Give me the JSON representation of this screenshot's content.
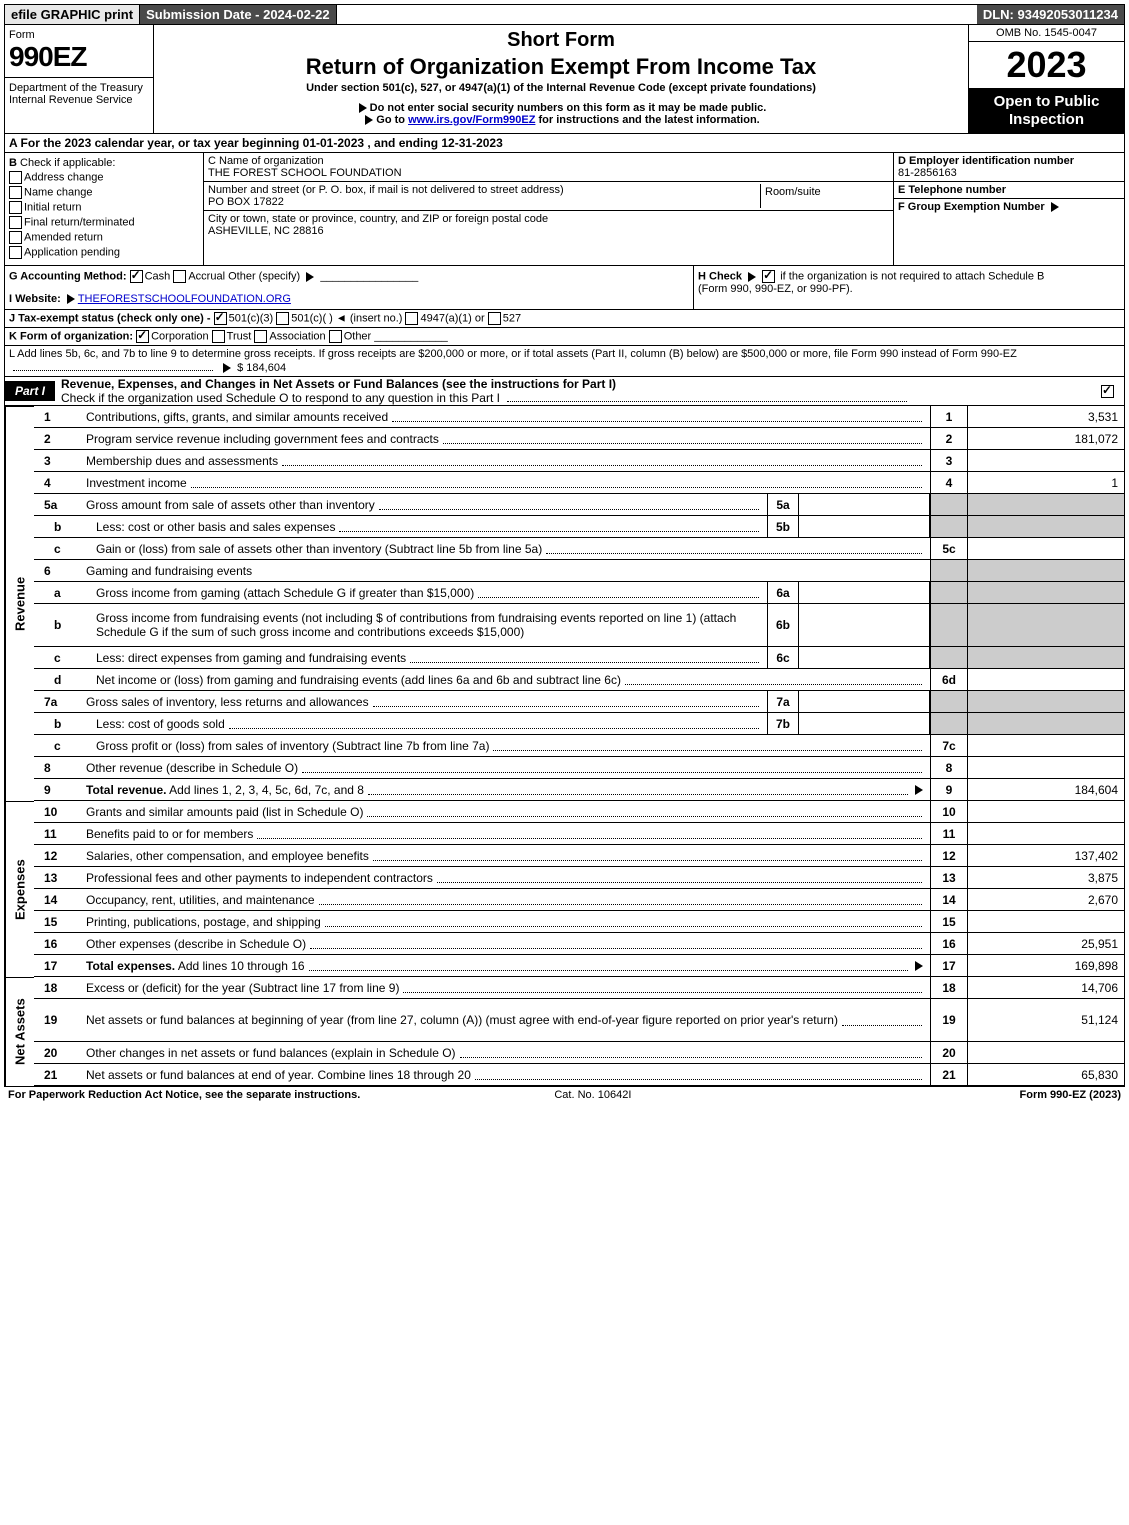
{
  "top": {
    "efile": "efile GRAPHIC print",
    "submission": "Submission Date - 2024-02-22",
    "dln": "DLN: 93492053011234"
  },
  "header": {
    "form_word": "Form",
    "form_no": "990EZ",
    "dept1": "Department of the Treasury",
    "dept2": "Internal Revenue Service",
    "short_form": "Short Form",
    "title": "Return of Organization Exempt From Income Tax",
    "subtitle": "Under section 501(c), 527, or 4947(a)(1) of the Internal Revenue Code (except private foundations)",
    "warn1": "Do not enter social security numbers on this form as it may be made public.",
    "warn2": "Go to www.irs.gov/Form990EZ for instructions and the latest information.",
    "omb": "OMB No. 1545-0047",
    "year": "2023",
    "open": "Open to Public Inspection"
  },
  "A": {
    "text": "A  For the 2023 calendar year, or tax year beginning 01-01-2023 , and ending 12-31-2023"
  },
  "B": {
    "label": "Check if applicable:",
    "items": [
      "Address change",
      "Name change",
      "Initial return",
      "Final return/terminated",
      "Amended return",
      "Application pending"
    ]
  },
  "C": {
    "name_lbl": "C Name of organization",
    "name": "THE FOREST SCHOOL FOUNDATION",
    "street_lbl": "Number and street (or P. O. box, if mail is not delivered to street address)",
    "street": "PO BOX 17822",
    "room_lbl": "Room/suite",
    "city_lbl": "City or town, state or province, country, and ZIP or foreign postal code",
    "city": "ASHEVILLE, NC  28816"
  },
  "D": {
    "lbl": "D Employer identification number",
    "val": "81-2856163"
  },
  "E": {
    "lbl": "E Telephone number"
  },
  "F": {
    "lbl": "F Group Exemption Number"
  },
  "G": {
    "lbl": "G Accounting Method:",
    "cash": "Cash",
    "accrual": "Accrual",
    "other": "Other (specify)"
  },
  "H": {
    "text1": "H  Check",
    "text2": "if the organization is not required to attach Schedule B",
    "text3": "(Form 990, 990-EZ, or 990-PF)."
  },
  "I": {
    "lbl": "I Website:",
    "val": "THEFORESTSCHOOLFOUNDATION.ORG"
  },
  "J": {
    "text": "J Tax-exempt status (check only one) -",
    "o1": "501(c)(3)",
    "o2": "501(c)(  )",
    "o2b": "(insert no.)",
    "o3": "4947(a)(1) or",
    "o4": "527"
  },
  "K": {
    "lbl": "K Form of organization:",
    "o1": "Corporation",
    "o2": "Trust",
    "o3": "Association",
    "o4": "Other"
  },
  "L": {
    "text": "L Add lines 5b, 6c, and 7b to line 9 to determine gross receipts. If gross receipts are $200,000 or more, or if total assets (Part II, column (B) below) are $500,000 or more, file Form 990 instead of Form 990-EZ",
    "amt": "$ 184,604"
  },
  "part1": {
    "tag": "Part I",
    "title": "Revenue, Expenses, and Changes in Net Assets or Fund Balances (see the instructions for Part I)",
    "check_line": "Check if the organization used Schedule O to respond to any question in this Part I"
  },
  "side": {
    "rev": "Revenue",
    "exp": "Expenses",
    "net": "Net Assets"
  },
  "lines": [
    {
      "n": "1",
      "d": "Contributions, gifts, grants, and similar amounts received",
      "rn": "1",
      "rv": "3,531"
    },
    {
      "n": "2",
      "d": "Program service revenue including government fees and contracts",
      "rn": "2",
      "rv": "181,072"
    },
    {
      "n": "3",
      "d": "Membership dues and assessments",
      "rn": "3",
      "rv": ""
    },
    {
      "n": "4",
      "d": "Investment income",
      "rn": "4",
      "rv": "1"
    },
    {
      "n": "5a",
      "d": "Gross amount from sale of assets other than inventory",
      "ib": "5a",
      "grey": true
    },
    {
      "n": "b",
      "sub": true,
      "d": "Less: cost or other basis and sales expenses",
      "ib": "5b",
      "grey": true
    },
    {
      "n": "c",
      "sub": true,
      "d": "Gain or (loss) from sale of assets other than inventory (Subtract line 5b from line 5a)",
      "rn": "5c",
      "rv": ""
    },
    {
      "n": "6",
      "d": "Gaming and fundraising events",
      "grey": true,
      "noval": true
    },
    {
      "n": "a",
      "sub": true,
      "d": "Gross income from gaming (attach Schedule G if greater than $15,000)",
      "ib": "6a",
      "grey": true
    },
    {
      "n": "b",
      "sub": true,
      "d": "Gross income from fundraising events (not including $                    of contributions from fundraising events reported on line 1) (attach Schedule G if the sum of such gross income and contributions exceeds $15,000)",
      "ib": "6b",
      "grey": true,
      "tall": true
    },
    {
      "n": "c",
      "sub": true,
      "d": "Less: direct expenses from gaming and fundraising events",
      "ib": "6c",
      "grey": true
    },
    {
      "n": "d",
      "sub": true,
      "d": "Net income or (loss) from gaming and fundraising events (add lines 6a and 6b and subtract line 6c)",
      "rn": "6d",
      "rv": ""
    },
    {
      "n": "7a",
      "d": "Gross sales of inventory, less returns and allowances",
      "ib": "7a",
      "grey": true
    },
    {
      "n": "b",
      "sub": true,
      "d": "Less: cost of goods sold",
      "ib": "7b",
      "grey": true
    },
    {
      "n": "c",
      "sub": true,
      "d": "Gross profit or (loss) from sales of inventory (Subtract line 7b from line 7a)",
      "rn": "7c",
      "rv": ""
    },
    {
      "n": "8",
      "d": "Other revenue (describe in Schedule O)",
      "rn": "8",
      "rv": ""
    },
    {
      "n": "9",
      "d": "Total revenue. Add lines 1, 2, 3, 4, 5c, 6d, 7c, and 8",
      "rn": "9",
      "rv": "184,604",
      "bold": true,
      "arrow": true
    }
  ],
  "exp_lines": [
    {
      "n": "10",
      "d": "Grants and similar amounts paid (list in Schedule O)",
      "rn": "10",
      "rv": ""
    },
    {
      "n": "11",
      "d": "Benefits paid to or for members",
      "rn": "11",
      "rv": ""
    },
    {
      "n": "12",
      "d": "Salaries, other compensation, and employee benefits",
      "rn": "12",
      "rv": "137,402"
    },
    {
      "n": "13",
      "d": "Professional fees and other payments to independent contractors",
      "rn": "13",
      "rv": "3,875"
    },
    {
      "n": "14",
      "d": "Occupancy, rent, utilities, and maintenance",
      "rn": "14",
      "rv": "2,670"
    },
    {
      "n": "15",
      "d": "Printing, publications, postage, and shipping",
      "rn": "15",
      "rv": ""
    },
    {
      "n": "16",
      "d": "Other expenses (describe in Schedule O)",
      "rn": "16",
      "rv": "25,951"
    },
    {
      "n": "17",
      "d": "Total expenses. Add lines 10 through 16",
      "rn": "17",
      "rv": "169,898",
      "bold": true,
      "arrow": true
    }
  ],
  "net_lines": [
    {
      "n": "18",
      "d": "Excess or (deficit) for the year (Subtract line 17 from line 9)",
      "rn": "18",
      "rv": "14,706"
    },
    {
      "n": "19",
      "d": "Net assets or fund balances at beginning of year (from line 27, column (A)) (must agree with end-of-year figure reported on prior year's return)",
      "rn": "19",
      "rv": "51,124",
      "tall": true
    },
    {
      "n": "20",
      "d": "Other changes in net assets or fund balances (explain in Schedule O)",
      "rn": "20",
      "rv": ""
    },
    {
      "n": "21",
      "d": "Net assets or fund balances at end of year. Combine lines 18 through 20",
      "rn": "21",
      "rv": "65,830"
    }
  ],
  "footer": {
    "left": "For Paperwork Reduction Act Notice, see the separate instructions.",
    "mid": "Cat. No. 10642I",
    "right": "Form 990-EZ (2023)"
  },
  "colors": {
    "bg": "#ffffff",
    "text": "#000000",
    "dark_bar": "#4a4a4a",
    "light_bar": "#e8e8e8",
    "grey_cell": "#cccccc",
    "link": "#0000cc"
  }
}
